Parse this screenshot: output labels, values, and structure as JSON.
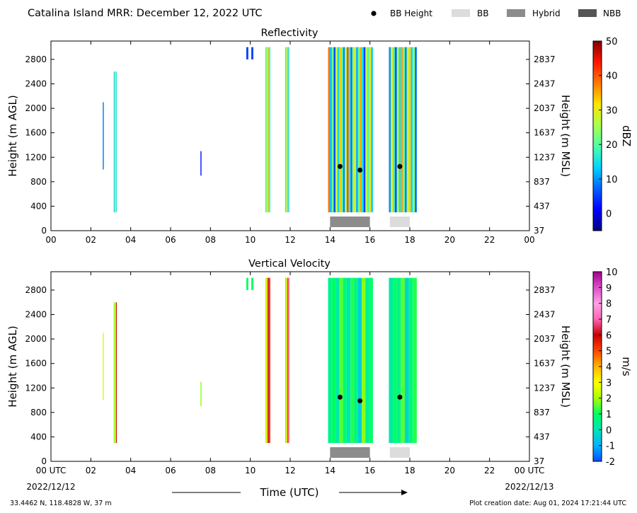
{
  "header": {
    "title": "Catalina Island MRR:  December 12, 2022 UTC"
  },
  "legend": {
    "placement": "top-right",
    "items": [
      {
        "label": "BB Height",
        "marker": "dot",
        "color": "#000000"
      },
      {
        "label": "BB",
        "marker": "rect",
        "color": "#dcdcdc"
      },
      {
        "label": "Hybrid",
        "marker": "rect",
        "color": "#8c8c8c"
      },
      {
        "label": "NBB",
        "marker": "rect",
        "color": "#555555"
      }
    ]
  },
  "colors": {
    "bb": "#dcdcdc",
    "hybrid": "#8c8c8c",
    "nbb": "#555555",
    "bb_height": "#000000"
  },
  "footer": {
    "location": "33.4462 N, 118.4828 W, 37 m",
    "created": "Plot creation date: Aug 01, 2024 17:21:44 UTC",
    "xlabel": "Time (UTC)",
    "start_date": "2022/12/12",
    "end_date": "2022/12/13"
  },
  "chart_data": [
    {
      "type": "heatmap",
      "title": "Reflectivity",
      "ylabel": "Height (m AGL)",
      "y2label": "Height (m MSL)",
      "xlim": [
        0,
        24
      ],
      "ylim": [
        0,
        3100
      ],
      "x_ticks": [
        "00",
        "02",
        "04",
        "06",
        "08",
        "10",
        "12",
        "14",
        "16",
        "18",
        "20",
        "22",
        "00"
      ],
      "y_ticks": [
        0,
        400,
        800,
        1200,
        1600,
        2000,
        2400,
        2800
      ],
      "y2_ticks": [
        "37",
        "437",
        "837",
        "1237",
        "1637",
        "2037",
        "2437",
        "2837"
      ],
      "colorbar": {
        "label": "dBZ",
        "range": [
          -5,
          50
        ],
        "ticks": [
          0,
          10,
          20,
          30,
          40,
          50
        ],
        "colormap": [
          "#00007f",
          "#0000ff",
          "#0063ff",
          "#00d4ff",
          "#4effa9",
          "#a9ff4e",
          "#ffe600",
          "#ff7a00",
          "#ff1500",
          "#7f0000"
        ]
      },
      "precip_segments": [
        {
          "start": 2.6,
          "end": 2.65,
          "top": 2100,
          "bottom": 1000,
          "vals": [
            8
          ]
        },
        {
          "start": 3.15,
          "end": 3.3,
          "top": 2600,
          "bottom": 300,
          "vals": [
            12,
            20,
            25,
            15
          ]
        },
        {
          "start": 7.5,
          "end": 7.55,
          "top": 1300,
          "bottom": 900,
          "vals": [
            2
          ]
        },
        {
          "start": 9.8,
          "end": 9.9,
          "top": 3000,
          "bottom": 2800,
          "vals": [
            5
          ]
        },
        {
          "start": 10.05,
          "end": 10.15,
          "top": 3000,
          "bottom": 2800,
          "vals": [
            5
          ]
        },
        {
          "start": 10.75,
          "end": 11.0,
          "top": 3000,
          "bottom": 300,
          "vals": [
            18,
            24,
            28,
            35,
            22,
            16
          ]
        },
        {
          "start": 11.75,
          "end": 11.95,
          "top": 3000,
          "bottom": 300,
          "vals": [
            15,
            22,
            30,
            36,
            20,
            12
          ]
        },
        {
          "start": 13.9,
          "end": 16.15,
          "top": 3000,
          "bottom": 300,
          "vals": [
            38,
            12,
            22,
            6,
            28,
            14,
            33,
            20,
            9,
            26,
            40,
            17,
            8,
            24,
            30,
            11,
            21,
            35,
            15,
            5,
            27,
            19,
            32,
            13
          ]
        },
        {
          "start": 16.95,
          "end": 18.35,
          "top": 3000,
          "bottom": 300,
          "vals": [
            10,
            30,
            18,
            6,
            26,
            15,
            36,
            21,
            9,
            28,
            33,
            14,
            24,
            8
          ]
        }
      ],
      "bands": [
        {
          "type": "Hybrid",
          "start": 14.0,
          "end": 16.0
        },
        {
          "type": "BB",
          "start": 17.0,
          "end": 18.0
        }
      ],
      "bb_heights": [
        {
          "time": 14.5,
          "height": 1050
        },
        {
          "time": 15.5,
          "height": 990
        },
        {
          "time": 17.5,
          "height": 1050
        }
      ]
    },
    {
      "type": "heatmap",
      "title": "Vertical Velocity",
      "ylabel": "Height (m AGL)",
      "y2label": "Height (m MSL)",
      "xlim": [
        0,
        24
      ],
      "ylim": [
        0,
        3100
      ],
      "x_ticks": [
        "00 UTC",
        "02",
        "04",
        "06",
        "08",
        "10",
        "12",
        "14",
        "16",
        "18",
        "20",
        "22",
        "00 UTC"
      ],
      "y_ticks": [
        0,
        400,
        800,
        1200,
        1600,
        2000,
        2400,
        2800
      ],
      "y2_ticks": [
        "37",
        "437",
        "837",
        "1237",
        "1637",
        "2037",
        "2437",
        "2837"
      ],
      "colorbar": {
        "label": "m/s",
        "range": [
          -2,
          10
        ],
        "ticks": [
          -2,
          -1,
          0,
          1,
          2,
          3,
          4,
          5,
          6,
          7,
          8,
          9,
          10
        ],
        "colormap": [
          "#0050ff",
          "#00b4ff",
          "#00e6b4",
          "#00ff64",
          "#aaff00",
          "#ffff00",
          "#ffb400",
          "#ff4600",
          "#c80000",
          "#ff64b4",
          "#ffa0e6",
          "#dc50c8",
          "#a0008c"
        ]
      },
      "precip_segments": [
        {
          "start": 2.6,
          "end": 2.65,
          "top": 2100,
          "bottom": 1000,
          "vals": [
            2.5
          ]
        },
        {
          "start": 3.15,
          "end": 3.3,
          "top": 2600,
          "bottom": 300,
          "vals": [
            1.5,
            2.5,
            3.5,
            6
          ]
        },
        {
          "start": 7.5,
          "end": 7.55,
          "top": 1300,
          "bottom": 900,
          "vals": [
            1.8
          ]
        },
        {
          "start": 9.8,
          "end": 9.9,
          "top": 3000,
          "bottom": 2800,
          "vals": [
            1.0
          ]
        },
        {
          "start": 10.05,
          "end": 10.15,
          "top": 3000,
          "bottom": 2800,
          "vals": [
            1.0
          ]
        },
        {
          "start": 10.75,
          "end": 11.0,
          "top": 3000,
          "bottom": 300,
          "vals": [
            2,
            2.5,
            4,
            6,
            6.5,
            5.5
          ]
        },
        {
          "start": 11.75,
          "end": 11.95,
          "top": 3000,
          "bottom": 300,
          "vals": [
            1.5,
            2,
            3,
            6,
            7,
            5
          ]
        },
        {
          "start": 13.9,
          "end": 16.15,
          "top": 3000,
          "bottom": 300,
          "vals": [
            0.5,
            1.0,
            0.2,
            1.5,
            0.8,
            0.0,
            1.2,
            0.6,
            -0.5,
            1.8,
            0.4,
            1.0
          ]
        },
        {
          "start": 16.95,
          "end": 18.35,
          "top": 3000,
          "bottom": 300,
          "vals": [
            0.2,
            1.0,
            0.5,
            1.5,
            -0.3,
            0.8,
            1.2
          ]
        }
      ],
      "bands": [
        {
          "type": "Hybrid",
          "start": 14.0,
          "end": 16.0
        },
        {
          "type": "BB",
          "start": 17.0,
          "end": 18.0
        }
      ],
      "bb_heights": [
        {
          "time": 14.5,
          "height": 1050
        },
        {
          "time": 15.5,
          "height": 990
        },
        {
          "time": 17.5,
          "height": 1050
        }
      ]
    }
  ]
}
